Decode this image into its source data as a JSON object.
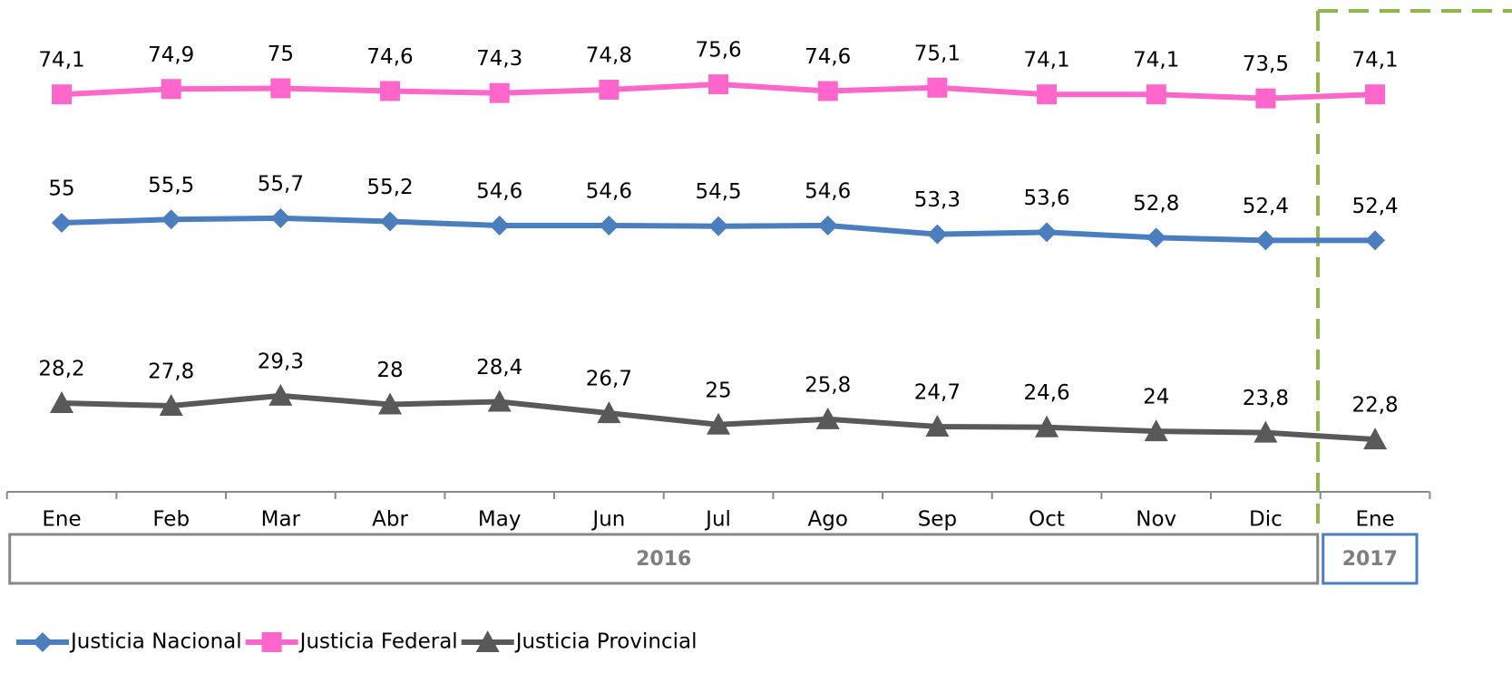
{
  "chart_data": {
    "type": "line",
    "categories": [
      "Ene",
      "Feb",
      "Mar",
      "Abr",
      "May",
      "Jun",
      "Jul",
      "Ago",
      "Sep",
      "Oct",
      "Nov",
      "Dic",
      "Ene"
    ],
    "groups": [
      {
        "label": "2016",
        "count": 12
      },
      {
        "label": "2017",
        "count": 1
      }
    ],
    "ylim": [
      15,
      88
    ],
    "legend": "bottom-left",
    "series": [
      {
        "name": "Justicia Nacional",
        "color": "#4a7ebf",
        "marker": "diamond",
        "values": [
          55,
          55.5,
          55.7,
          55.2,
          54.6,
          54.6,
          54.5,
          54.6,
          53.3,
          53.6,
          52.8,
          52.4,
          52.4
        ],
        "value_labels": [
          "55",
          "55,5",
          "55,7",
          "55,2",
          "54,6",
          "54,6",
          "54,5",
          "54,6",
          "53,3",
          "53,6",
          "52,8",
          "52,4",
          "52,4"
        ]
      },
      {
        "name": "Justicia Federal",
        "color": "#ff66cc",
        "marker": "square",
        "values": [
          74.1,
          74.9,
          75,
          74.6,
          74.3,
          74.8,
          75.6,
          74.6,
          75.1,
          74.1,
          74.1,
          73.5,
          74.1
        ],
        "value_labels": [
          "74,1",
          "74,9",
          "75",
          "74,6",
          "74,3",
          "74,8",
          "75,6",
          "74,6",
          "75,1",
          "74,1",
          "74,1",
          "73,5",
          "74,1"
        ]
      },
      {
        "name": "Justicia Provincial",
        "color": "#595959",
        "marker": "triangle",
        "values": [
          28.2,
          27.8,
          29.3,
          28,
          28.4,
          26.7,
          25,
          25.8,
          24.7,
          24.6,
          24,
          23.8,
          22.8
        ],
        "value_labels": [
          "28,2",
          "27,8",
          "29,3",
          "28",
          "28,4",
          "26,7",
          "25",
          "25,8",
          "24,7",
          "24,6",
          "24",
          "23,8",
          "22,8"
        ]
      }
    ]
  }
}
